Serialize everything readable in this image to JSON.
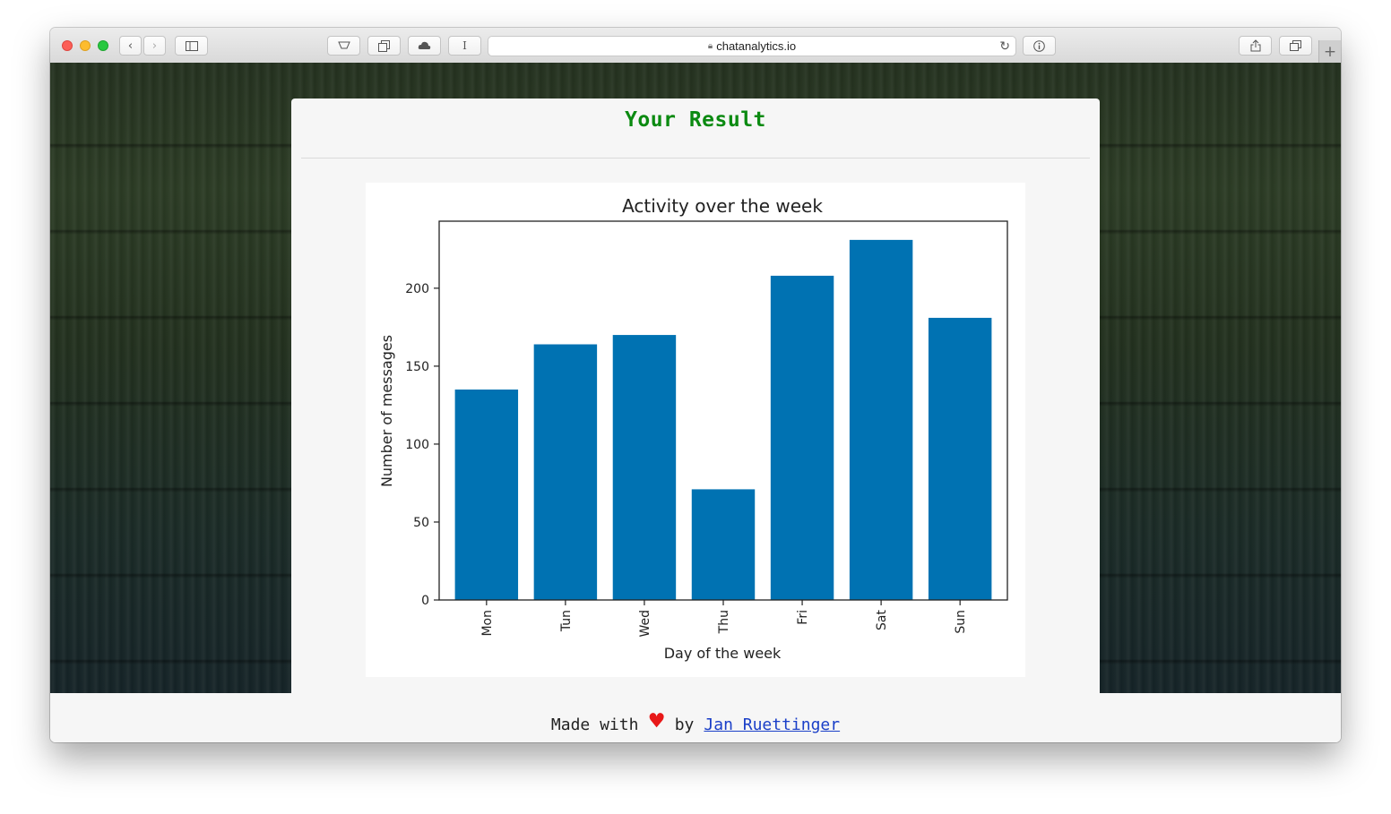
{
  "browser": {
    "url": "chatanalytics.io",
    "icons": {
      "back": "chevron-left-icon",
      "forward": "chevron-right-icon",
      "sidebar": "sidebar-icon",
      "reload": "reload-icon",
      "info": "info-icon",
      "share": "share-icon",
      "tabs": "tabs-icon",
      "new_tab": "plus-icon"
    }
  },
  "card": {
    "title": "Your Result"
  },
  "chart_data": {
    "type": "bar",
    "title": "Activity over the week",
    "xlabel": "Day of the week",
    "ylabel": "Number of messages",
    "categories": [
      "Mon",
      "Tun",
      "Wed",
      "Thu",
      "Fri",
      "Sat",
      "Sun"
    ],
    "values": [
      135,
      164,
      170,
      71,
      208,
      231,
      181
    ],
    "ylim": [
      0,
      243
    ],
    "yticks": [
      0,
      50,
      100,
      150,
      200
    ],
    "bar_color": "#0072b2",
    "grid": false
  },
  "footer": {
    "made_with": "Made with",
    "heart": "♥",
    "by": "by",
    "author": "Jan Ruettinger",
    "heart_color": "#e81818"
  }
}
